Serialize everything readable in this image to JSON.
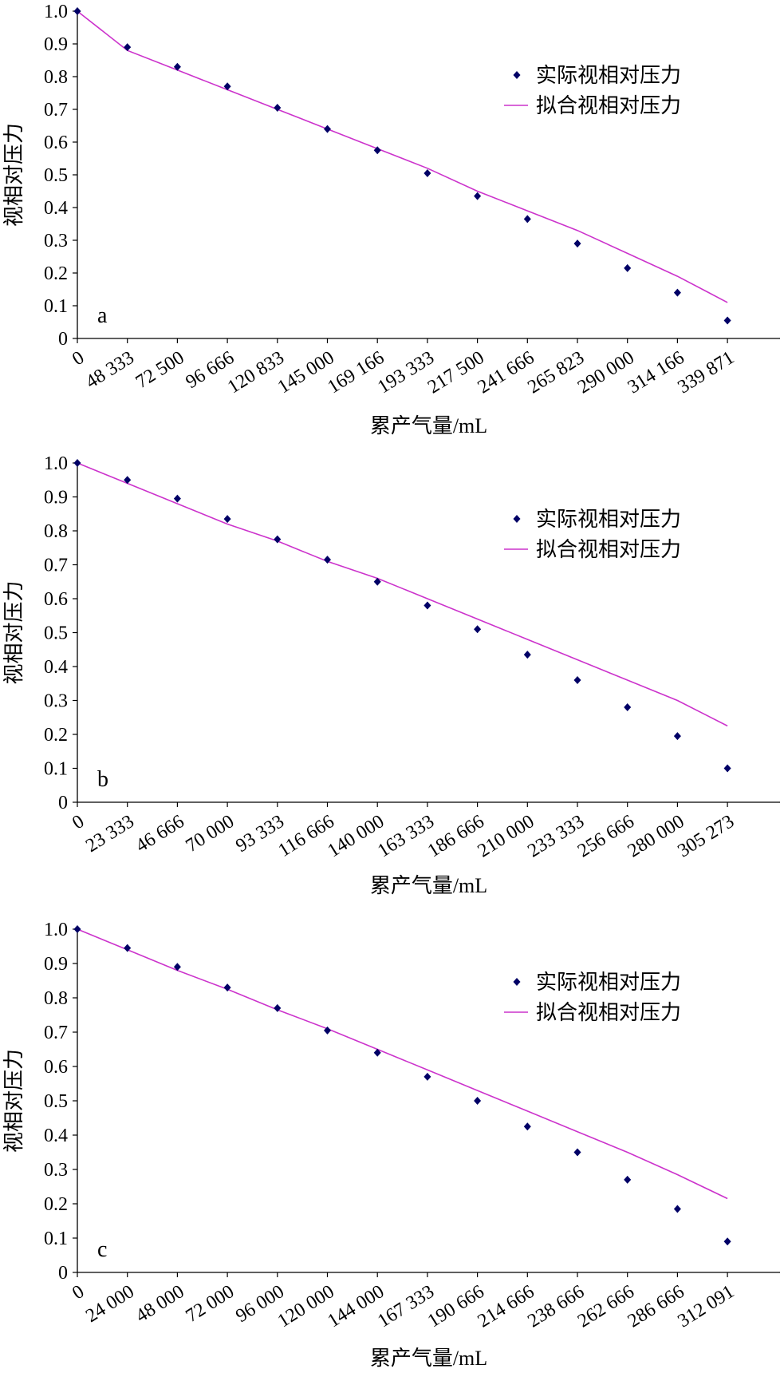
{
  "chart_data": [
    {
      "type": "scatter",
      "panel_label": "a",
      "xlabel": "累产气量/mL",
      "ylabel": "视相对压力",
      "categories": [
        "0",
        "48 333",
        "72 500",
        "96 666",
        "120 833",
        "145 000",
        "169 166",
        "193 333",
        "217 500",
        "241 666",
        "265 823",
        "290 000",
        "314 166",
        "339 871"
      ],
      "ylim": [
        0,
        1.0
      ],
      "yticks": [
        "0",
        "0.1",
        "0.2",
        "0.3",
        "0.4",
        "0.5",
        "0.6",
        "0.7",
        "0.8",
        "0.9",
        "1.0"
      ],
      "legend_position": "top-right",
      "series": [
        {
          "name": "实际视相对压力",
          "kind": "scatter",
          "color": "#000066",
          "values": [
            1.0,
            0.89,
            0.83,
            0.77,
            0.705,
            0.64,
            0.575,
            0.505,
            0.435,
            0.365,
            0.29,
            0.215,
            0.14,
            0.055
          ]
        },
        {
          "name": "拟合视相对压力",
          "kind": "line",
          "color": "#cc33cc",
          "values": [
            1.0,
            0.88,
            0.82,
            0.76,
            0.7,
            0.64,
            0.58,
            0.52,
            0.45,
            0.39,
            0.33,
            0.26,
            0.19,
            0.11
          ]
        }
      ]
    },
    {
      "type": "scatter",
      "panel_label": "b",
      "xlabel": "累产气量/mL",
      "ylabel": "视相对压力",
      "categories": [
        "0",
        "23 333",
        "46 666",
        "70 000",
        "93 333",
        "116 666",
        "140 000",
        "163 333",
        "186 666",
        "210 000",
        "233 333",
        "256 666",
        "280 000",
        "305 273"
      ],
      "ylim": [
        0,
        1.0
      ],
      "yticks": [
        "0",
        "0.1",
        "0.2",
        "0.3",
        "0.4",
        "0.5",
        "0.6",
        "0.7",
        "0.8",
        "0.9",
        "1.0"
      ],
      "legend_position": "top-right",
      "series": [
        {
          "name": "实际视相对压力",
          "kind": "scatter",
          "color": "#000066",
          "values": [
            1.0,
            0.95,
            0.895,
            0.835,
            0.775,
            0.715,
            0.65,
            0.58,
            0.51,
            0.435,
            0.36,
            0.28,
            0.195,
            0.1
          ]
        },
        {
          "name": "拟合视相对压力",
          "kind": "line",
          "color": "#cc33cc",
          "values": [
            1.0,
            0.94,
            0.88,
            0.82,
            0.77,
            0.71,
            0.66,
            0.6,
            0.54,
            0.48,
            0.42,
            0.36,
            0.3,
            0.225
          ]
        }
      ]
    },
    {
      "type": "scatter",
      "panel_label": "c",
      "xlabel": "累产气量/mL",
      "ylabel": "视相对压力",
      "categories": [
        "0",
        "24 000",
        "48 000",
        "72 000",
        "96 000",
        "120 000",
        "144 000",
        "167 333",
        "190 666",
        "214 666",
        "238 666",
        "262 666",
        "286 666",
        "312 091"
      ],
      "ylim": [
        0,
        1.0
      ],
      "yticks": [
        "0",
        "0.1",
        "0.2",
        "0.3",
        "0.4",
        "0.5",
        "0.6",
        "0.7",
        "0.8",
        "0.9",
        "1.0"
      ],
      "legend_position": "top-right",
      "series": [
        {
          "name": "实际视相对压力",
          "kind": "scatter",
          "color": "#000066",
          "values": [
            1.0,
            0.945,
            0.89,
            0.83,
            0.77,
            0.705,
            0.64,
            0.57,
            0.5,
            0.425,
            0.35,
            0.27,
            0.185,
            0.09
          ]
        },
        {
          "name": "拟合视相对压力",
          "kind": "line",
          "color": "#cc33cc",
          "values": [
            1.0,
            0.94,
            0.88,
            0.825,
            0.765,
            0.71,
            0.65,
            0.59,
            0.53,
            0.47,
            0.41,
            0.35,
            0.285,
            0.215
          ]
        }
      ]
    }
  ]
}
